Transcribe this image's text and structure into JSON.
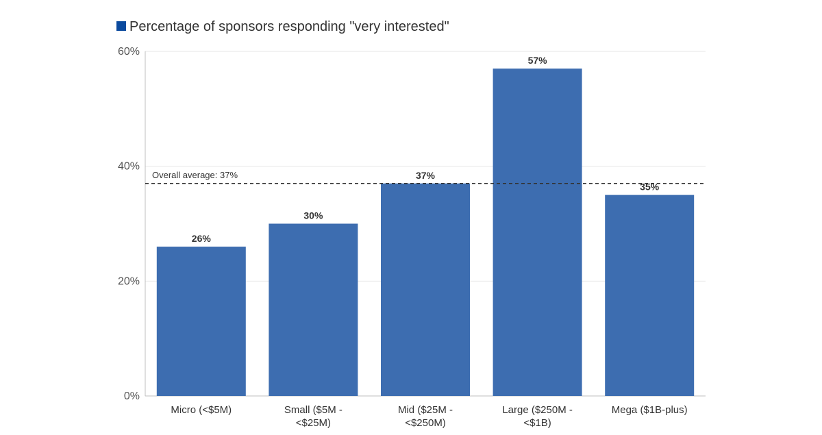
{
  "chart_data": {
    "type": "bar",
    "categories": [
      [
        "Micro (<$5M)"
      ],
      [
        "Small ($5M -",
        "<$25M)"
      ],
      [
        "Mid ($25M -",
        "<$250M)"
      ],
      [
        "Large ($250M -",
        "<$1B)"
      ],
      [
        "Mega ($1B-plus)"
      ]
    ],
    "series": [
      {
        "name": "Percentage of sponsors responding \"very interested\"",
        "values": [
          26,
          30,
          37,
          57,
          35
        ]
      }
    ],
    "data_labels": [
      "26%",
      "30%",
      "37%",
      "57%",
      "35%"
    ],
    "yticks": [
      0,
      20,
      40,
      60
    ],
    "ytick_labels": [
      "0%",
      "20%",
      "40%",
      "60%"
    ],
    "ylim": [
      0,
      60
    ],
    "reference_line": {
      "value": 37,
      "label": "Overall average: 37%"
    },
    "legend_position": "top-left",
    "grid": true,
    "colors": {
      "bar": "#3d6db0",
      "legend_swatch": "#0b4a9e"
    }
  }
}
